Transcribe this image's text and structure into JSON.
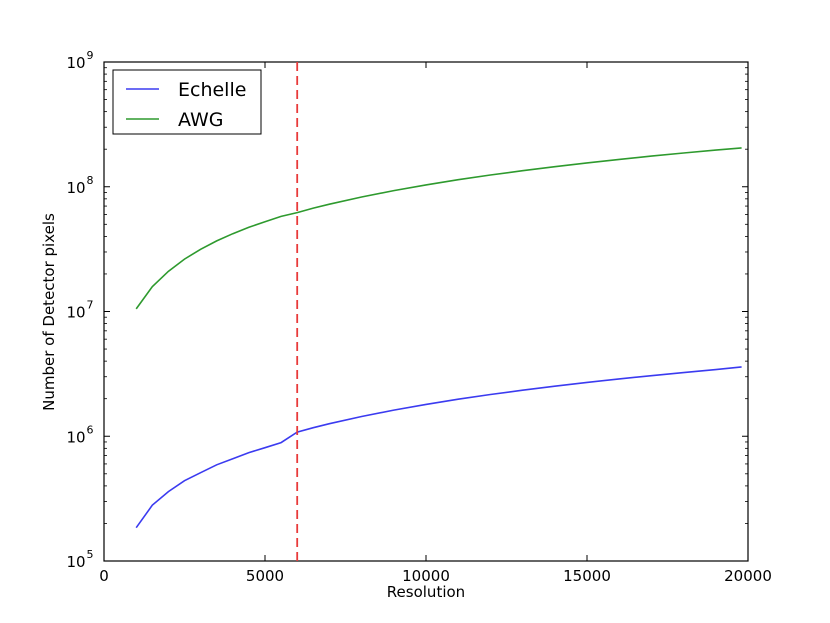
{
  "chart_data": {
    "type": "line",
    "title": "",
    "xlabel": "Resolution",
    "ylabel": "Number of Detector pixels",
    "xlim": [
      0,
      20000
    ],
    "ylim": [
      100000,
      1000000000
    ],
    "yscale": "log",
    "grid": false,
    "legend_position": "top-left",
    "x_ticks": [
      {
        "value": 0,
        "label": "0"
      },
      {
        "value": 5000,
        "label": "5000"
      },
      {
        "value": 10000,
        "label": "10000"
      },
      {
        "value": 15000,
        "label": "15000"
      },
      {
        "value": 20000,
        "label": "20000"
      }
    ],
    "y_ticks": [
      {
        "value": 100000,
        "base": "10",
        "exp": "5"
      },
      {
        "value": 1000000,
        "base": "10",
        "exp": "6"
      },
      {
        "value": 10000000,
        "base": "10",
        "exp": "7"
      },
      {
        "value": 100000000,
        "base": "10",
        "exp": "8"
      },
      {
        "value": 1000000000,
        "base": "10",
        "exp": "9"
      }
    ],
    "x": [
      1000,
      1500,
      2000,
      2500,
      3000,
      3500,
      4000,
      4500,
      5000,
      5500,
      6000,
      6500,
      7000,
      8000,
      9000,
      10000,
      11000,
      12000,
      13000,
      14000,
      15000,
      16000,
      17000,
      18000,
      19000,
      19800
    ],
    "series": [
      {
        "name": "Echelle",
        "color": "#3b3bf0",
        "values": [
          185000,
          280000,
          360000,
          440000,
          510000,
          590000,
          660000,
          740000,
          810000,
          890000,
          1080000,
          1170000,
          1260000,
          1440000,
          1620000,
          1800000,
          1980000,
          2160000,
          2340000,
          2520000,
          2700000,
          2880000,
          3060000,
          3240000,
          3420000,
          3600000
        ]
      },
      {
        "name": "AWG",
        "color": "#2e9a2e",
        "values": [
          10500000,
          15800000,
          21000000,
          26300000,
          31500000,
          36800000,
          42000000,
          47300000,
          52500000,
          57800000,
          62000000,
          67400000,
          72500000,
          82800000,
          93200000,
          103500000,
          113900000,
          124200000,
          134600000,
          144900000,
          155300000,
          165600000,
          176000000,
          186300000,
          196700000,
          205000000
        ]
      }
    ],
    "vlines": [
      {
        "x": 6000,
        "color": "#e83a3a",
        "style": "dashed"
      }
    ]
  }
}
